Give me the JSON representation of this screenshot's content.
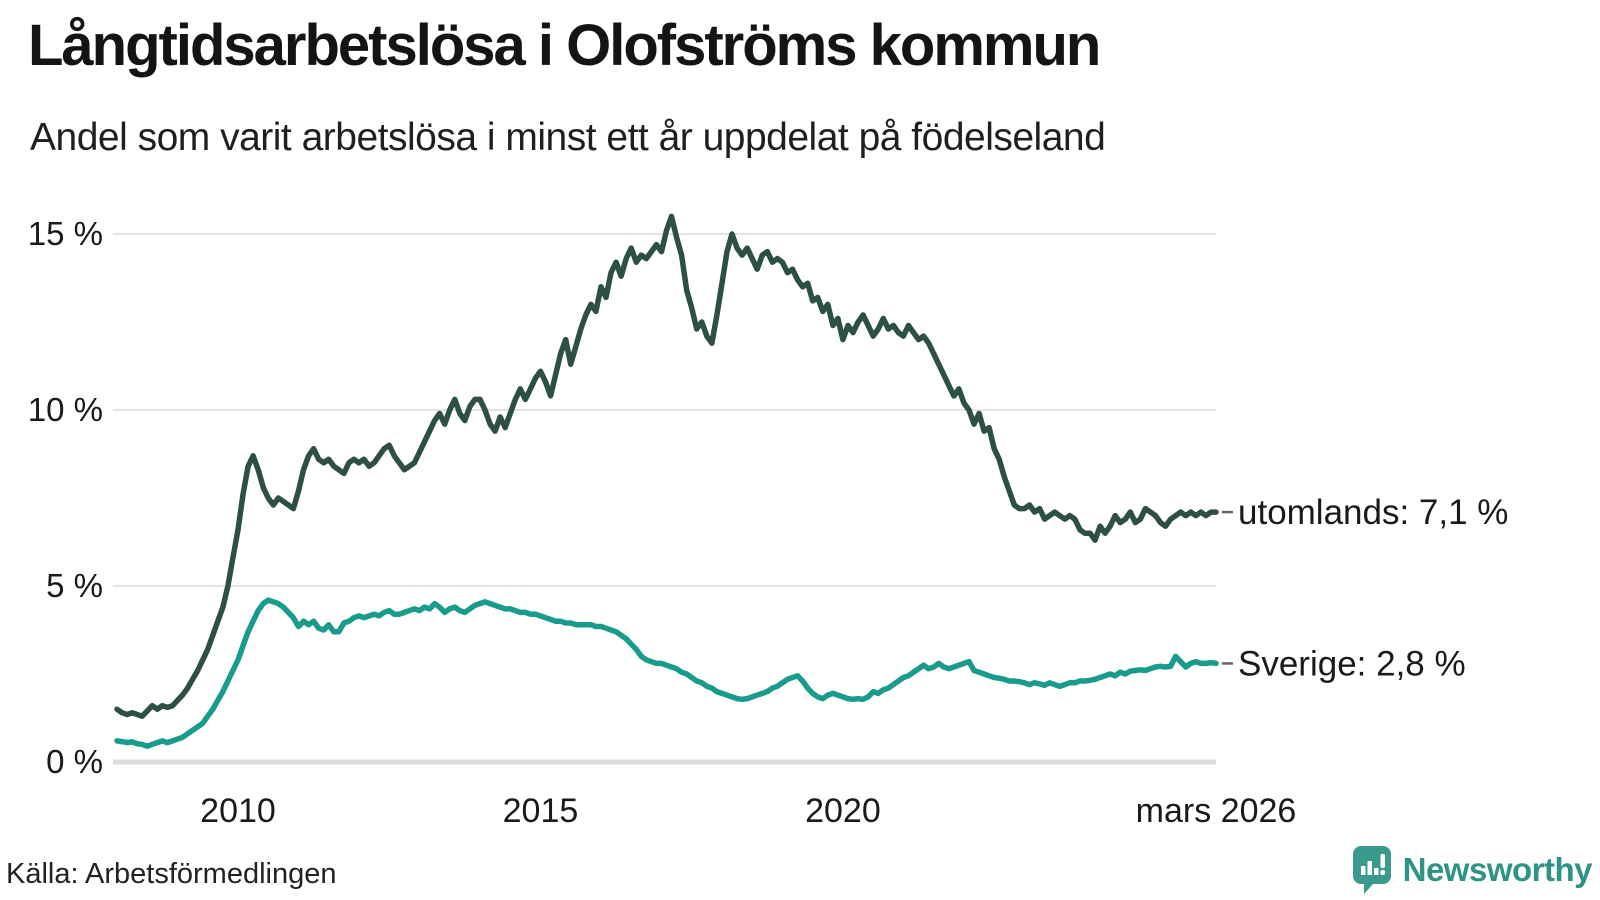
{
  "title": "Långtidsarbetslösa i Olofströms kommun",
  "subtitle": "Andel som varit arbetslösa i minst ett år uppdelat på födelseland",
  "source": "Källa: Arbetsförmedlingen",
  "brand": {
    "name": "Newsworthy",
    "icon": "speech-bubble-bar-chart-exclamation",
    "icon_color": "#3b9a8d",
    "text_color": "#2e9486"
  },
  "colors": {
    "grid": "#e4e4e4",
    "baseline": "#dcdcdc",
    "text": "#1a1a1a",
    "connector_dash": "#666666"
  },
  "chart_data": {
    "type": "line",
    "title": "Långtidsarbetslösa i Olofströms kommun",
    "subtitle": "Andel som varit arbetslösa i minst ett år uppdelat på födelseland",
    "unit": "%",
    "frequency": "monthly",
    "x_start_year": 2008.0,
    "x_end_year": 2026.167,
    "ylim": [
      0,
      16
    ],
    "grid": "horizontal",
    "legend_position": "right-end-labels",
    "y_ticks": [
      0,
      5,
      10,
      15
    ],
    "y_tick_labels": [
      "0 %",
      "5 %",
      "10 %",
      "15 %"
    ],
    "x_ticks": [
      {
        "label": "2010",
        "year": 2010.0
      },
      {
        "label": "2015",
        "year": 2015.0
      },
      {
        "label": "2020",
        "year": 2020.0
      },
      {
        "label": "mars 2026",
        "year": 2026.167
      }
    ],
    "series": [
      {
        "name": "utomlands",
        "label": "utomlands: 7,1 %",
        "last_value": 7.1,
        "color": "#2d4f46",
        "values": [
          1.5,
          1.4,
          1.35,
          1.4,
          1.35,
          1.3,
          1.45,
          1.6,
          1.5,
          1.6,
          1.55,
          1.6,
          1.75,
          1.9,
          2.1,
          2.35,
          2.6,
          2.9,
          3.2,
          3.6,
          4.0,
          4.4,
          5.0,
          5.8,
          6.6,
          7.6,
          8.4,
          8.7,
          8.3,
          7.8,
          7.5,
          7.3,
          7.5,
          7.4,
          7.3,
          7.2,
          7.7,
          8.3,
          8.7,
          8.9,
          8.6,
          8.5,
          8.6,
          8.4,
          8.3,
          8.2,
          8.5,
          8.6,
          8.5,
          8.6,
          8.4,
          8.5,
          8.7,
          8.9,
          9.0,
          8.7,
          8.5,
          8.3,
          8.4,
          8.5,
          8.8,
          9.1,
          9.4,
          9.7,
          9.9,
          9.6,
          10.0,
          10.3,
          9.9,
          9.7,
          10.1,
          10.3,
          10.3,
          10.0,
          9.6,
          9.4,
          9.8,
          9.5,
          9.9,
          10.3,
          10.6,
          10.3,
          10.6,
          10.9,
          11.1,
          10.8,
          10.4,
          11.0,
          11.6,
          12.0,
          11.3,
          11.8,
          12.3,
          12.7,
          13.0,
          12.8,
          13.5,
          13.2,
          13.9,
          14.2,
          13.8,
          14.3,
          14.6,
          14.2,
          14.4,
          14.3,
          14.5,
          14.7,
          14.5,
          15.1,
          15.5,
          14.9,
          14.4,
          13.4,
          12.9,
          12.3,
          12.5,
          12.1,
          11.9,
          12.7,
          13.6,
          14.5,
          15.0,
          14.6,
          14.4,
          14.6,
          14.3,
          14.0,
          14.4,
          14.5,
          14.2,
          14.3,
          14.2,
          13.9,
          14.0,
          13.7,
          13.5,
          13.6,
          13.1,
          13.2,
          12.8,
          13.0,
          12.4,
          12.6,
          12.0,
          12.4,
          12.2,
          12.5,
          12.7,
          12.4,
          12.1,
          12.3,
          12.6,
          12.3,
          12.4,
          12.2,
          12.1,
          12.4,
          12.2,
          12.0,
          12.1,
          11.9,
          11.6,
          11.3,
          11.0,
          10.7,
          10.4,
          10.6,
          10.2,
          10.0,
          9.6,
          9.9,
          9.4,
          9.5,
          8.9,
          8.6,
          8.1,
          7.7,
          7.3,
          7.2,
          7.2,
          7.3,
          7.1,
          7.2,
          6.9,
          7.0,
          7.1,
          7.0,
          6.9,
          7.0,
          6.9,
          6.6,
          6.5,
          6.5,
          6.3,
          6.7,
          6.5,
          6.7,
          7.0,
          6.8,
          6.9,
          7.1,
          6.8,
          6.9,
          7.2,
          7.1,
          7.0,
          6.8,
          6.7,
          6.9,
          7.0,
          7.1,
          7.0,
          7.1,
          7.0,
          7.1,
          7.0,
          7.1,
          7.1
        ]
      },
      {
        "name": "Sverige",
        "label": "Sverige: 2,8 %",
        "last_value": 2.8,
        "color": "#1a9c8c",
        "values": [
          0.6,
          0.58,
          0.55,
          0.57,
          0.52,
          0.5,
          0.45,
          0.5,
          0.55,
          0.6,
          0.55,
          0.6,
          0.65,
          0.7,
          0.8,
          0.9,
          1.0,
          1.1,
          1.3,
          1.5,
          1.75,
          2.0,
          2.3,
          2.6,
          2.9,
          3.3,
          3.7,
          4.0,
          4.3,
          4.5,
          4.6,
          4.55,
          4.5,
          4.4,
          4.25,
          4.1,
          3.85,
          4.0,
          3.9,
          4.0,
          3.8,
          3.75,
          3.9,
          3.7,
          3.7,
          3.95,
          4.0,
          4.1,
          4.15,
          4.1,
          4.15,
          4.2,
          4.15,
          4.25,
          4.3,
          4.2,
          4.2,
          4.25,
          4.3,
          4.35,
          4.3,
          4.4,
          4.35,
          4.5,
          4.4,
          4.25,
          4.35,
          4.4,
          4.3,
          4.25,
          4.35,
          4.45,
          4.5,
          4.55,
          4.5,
          4.45,
          4.4,
          4.35,
          4.35,
          4.3,
          4.25,
          4.25,
          4.2,
          4.2,
          4.15,
          4.1,
          4.05,
          4.0,
          4.0,
          3.95,
          3.95,
          3.9,
          3.9,
          3.9,
          3.9,
          3.85,
          3.85,
          3.8,
          3.75,
          3.7,
          3.6,
          3.5,
          3.35,
          3.2,
          3.0,
          2.9,
          2.85,
          2.8,
          2.8,
          2.75,
          2.7,
          2.65,
          2.55,
          2.5,
          2.4,
          2.3,
          2.25,
          2.15,
          2.1,
          2.0,
          1.95,
          1.9,
          1.85,
          1.8,
          1.78,
          1.8,
          1.85,
          1.9,
          1.95,
          2.0,
          2.1,
          2.15,
          2.25,
          2.35,
          2.4,
          2.45,
          2.3,
          2.1,
          1.95,
          1.85,
          1.8,
          1.9,
          1.95,
          1.9,
          1.85,
          1.8,
          1.78,
          1.8,
          1.78,
          1.85,
          2.0,
          1.95,
          2.05,
          2.1,
          2.2,
          2.3,
          2.4,
          2.45,
          2.55,
          2.65,
          2.75,
          2.65,
          2.7,
          2.8,
          2.7,
          2.65,
          2.7,
          2.75,
          2.8,
          2.85,
          2.6,
          2.55,
          2.5,
          2.45,
          2.4,
          2.38,
          2.35,
          2.3,
          2.3,
          2.28,
          2.25,
          2.2,
          2.25,
          2.22,
          2.18,
          2.25,
          2.2,
          2.15,
          2.2,
          2.25,
          2.25,
          2.3,
          2.3,
          2.32,
          2.35,
          2.4,
          2.45,
          2.5,
          2.45,
          2.55,
          2.5,
          2.58,
          2.6,
          2.62,
          2.6,
          2.65,
          2.7,
          2.72,
          2.7,
          2.72,
          3.0,
          2.85,
          2.7,
          2.8,
          2.85,
          2.8,
          2.8,
          2.82,
          2.8
        ]
      }
    ]
  }
}
